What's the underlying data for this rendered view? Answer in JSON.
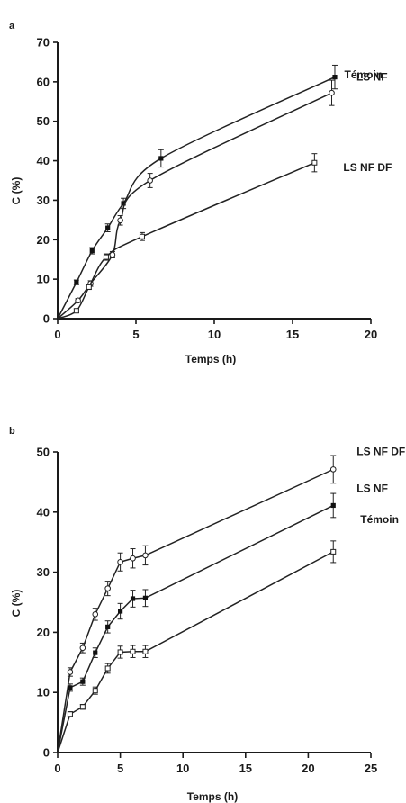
{
  "chart_data": [
    {
      "type": "line",
      "panel_label": "a",
      "xlabel": "Temps (h)",
      "ylabel": "C (%)",
      "xlim": [
        0,
        20
      ],
      "ylim": [
        0,
        70
      ],
      "xticks": [
        0,
        5,
        10,
        15,
        20
      ],
      "yticks": [
        0,
        10,
        20,
        30,
        40,
        50,
        60,
        70
      ],
      "grid": false,
      "series": [
        {
          "name": "LS NF",
          "marker": "filled-square",
          "x": [
            0,
            1.2,
            2.2,
            3.2,
            4.2,
            6.6,
            17.7
          ],
          "y": [
            0,
            9.2,
            17.2,
            23.0,
            29.2,
            40.6,
            61.2
          ],
          "error": [
            0,
            0.6,
            0.8,
            1.0,
            1.3,
            2.2,
            3.0
          ]
        },
        {
          "name": "Témoin",
          "marker": "open-circle",
          "x": [
            0,
            1.3,
            2.1,
            3.5,
            4.0,
            5.9,
            17.5
          ],
          "y": [
            0,
            4.6,
            8.9,
            16.2,
            24.9,
            35.0,
            57.2
          ],
          "error": [
            0,
            0.5,
            0.7,
            0.8,
            1.2,
            1.8,
            3.2
          ]
        },
        {
          "name": "LS NF DF",
          "marker": "open-square",
          "x": [
            0,
            1.2,
            2.0,
            3.1,
            5.4,
            16.4
          ],
          "y": [
            0,
            2.0,
            8.0,
            15.6,
            20.8,
            39.5
          ],
          "error": [
            0,
            0.5,
            0.6,
            0.8,
            1.0,
            2.3
          ]
        }
      ]
    },
    {
      "type": "line",
      "panel_label": "b",
      "xlabel": "Temps (h)",
      "ylabel": "C (%)",
      "xlim": [
        0,
        25
      ],
      "ylim": [
        0,
        50
      ],
      "xticks": [
        0,
        5,
        10,
        15,
        20,
        25
      ],
      "yticks": [
        0,
        10,
        20,
        30,
        40,
        50
      ],
      "grid": false,
      "series": [
        {
          "name": "LS NF DF",
          "marker": "open-circle",
          "x": [
            0,
            1,
            2,
            3,
            4,
            5,
            6,
            7,
            22
          ],
          "y": [
            0,
            13.4,
            17.4,
            23.0,
            27.3,
            31.7,
            32.3,
            32.8,
            47.1
          ],
          "error": [
            0,
            0.7,
            0.8,
            1.0,
            1.2,
            1.5,
            1.6,
            1.6,
            2.3
          ]
        },
        {
          "name": "LS NF",
          "marker": "filled-square",
          "x": [
            0,
            1,
            2,
            3,
            4,
            5,
            6,
            7,
            22
          ],
          "y": [
            0,
            10.8,
            11.8,
            16.6,
            20.9,
            23.5,
            25.6,
            25.7,
            41.1
          ],
          "error": [
            0,
            0.6,
            0.6,
            0.8,
            1.0,
            1.3,
            1.4,
            1.4,
            2.0
          ]
        },
        {
          "name": "Témoin",
          "marker": "open-square",
          "x": [
            0,
            1,
            2,
            3,
            4,
            5,
            6,
            7,
            22
          ],
          "y": [
            0,
            6.4,
            7.6,
            10.3,
            14.0,
            16.7,
            16.8,
            16.8,
            33.4
          ],
          "error": [
            0,
            0.4,
            0.4,
            0.6,
            0.8,
            1.0,
            1.0,
            1.0,
            1.8
          ]
        }
      ]
    }
  ]
}
